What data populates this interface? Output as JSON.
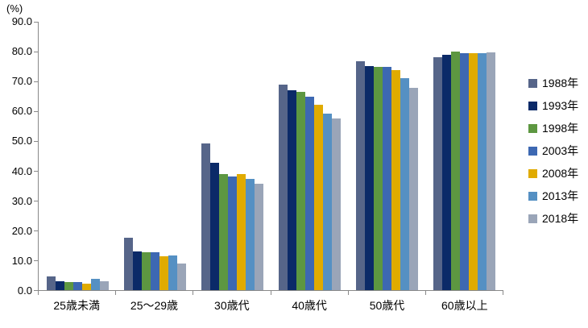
{
  "colors": {
    "axis": "#898989",
    "text": "#000000",
    "background": "#ffffff"
  },
  "chart_data": {
    "type": "bar",
    "title": "",
    "unit_label": "(%)",
    "categories": [
      "25歳未満",
      "25～29歳",
      "30歳代",
      "40歳代",
      "50歳代",
      "60歳以上"
    ],
    "series": [
      {
        "name": "1988年",
        "color": "#566589",
        "values": [
          4.7,
          17.7,
          49.2,
          68.8,
          76.7,
          78.0
        ]
      },
      {
        "name": "1993年",
        "color": "#0b2a68",
        "values": [
          3.1,
          12.9,
          42.8,
          67.0,
          75.1,
          78.9
        ]
      },
      {
        "name": "1998年",
        "color": "#5d9741",
        "values": [
          2.6,
          12.6,
          39.0,
          66.5,
          74.8,
          80.1
        ]
      },
      {
        "name": "2003年",
        "color": "#3d68b2",
        "values": [
          2.8,
          12.8,
          38.1,
          65.0,
          74.8,
          79.4
        ]
      },
      {
        "name": "2008年",
        "color": "#e0ab00",
        "values": [
          2.2,
          11.4,
          38.8,
          62.1,
          73.9,
          79.5
        ]
      },
      {
        "name": "2013年",
        "color": "#5590c3",
        "values": [
          3.9,
          11.5,
          37.4,
          59.1,
          71.2,
          79.5
        ]
      },
      {
        "name": "2018年",
        "color": "#9aa5b8",
        "values": [
          3.0,
          9.0,
          35.7,
          57.6,
          67.8,
          79.7
        ]
      }
    ],
    "ylim": [
      0,
      90
    ],
    "yticks": [
      0,
      10,
      20,
      30,
      40,
      50,
      60,
      70,
      80,
      90
    ],
    "ytick_format_decimals": 1,
    "grid": false,
    "legend_position": "right"
  }
}
